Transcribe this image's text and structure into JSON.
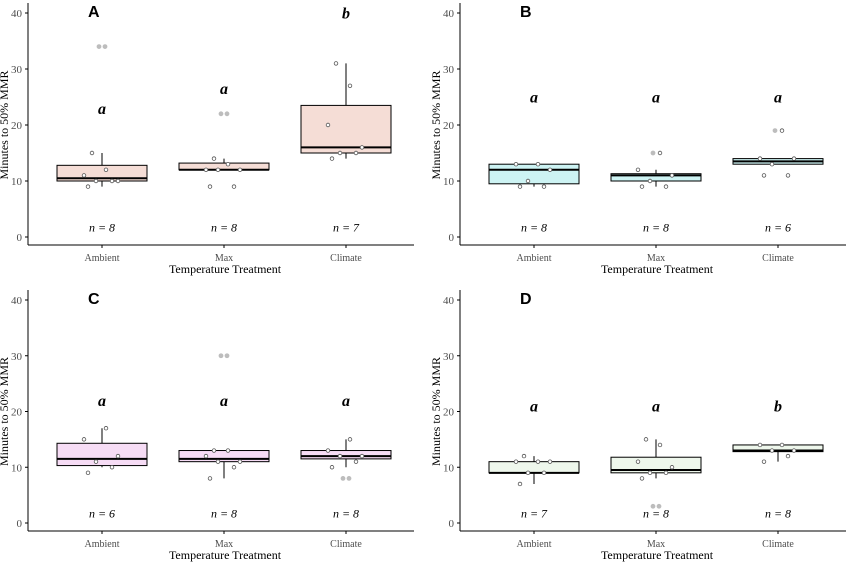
{
  "chart_data": [
    {
      "type": "box",
      "panel_label": "A",
      "xlabel": "Temperature Treatment",
      "ylabel": "Minutes to 50% MMR",
      "ylim": [
        0,
        40
      ],
      "yticks": [
        0,
        10,
        20,
        30,
        40
      ],
      "categories": [
        "Ambient",
        "Max",
        "Climate"
      ],
      "fill_color": "#f5ddd6",
      "grid": false,
      "groups": [
        {
          "category": "Ambient",
          "q1": 10,
          "median": 10.5,
          "q3": 12.8,
          "whisker_low": 9,
          "whisker_high": 15,
          "points": [
            9,
            10,
            10,
            10,
            11,
            12,
            15
          ],
          "outliers": [
            34,
            34
          ],
          "letter": "a",
          "n": "n = 8"
        },
        {
          "category": "Max",
          "q1": 12,
          "median": 12,
          "q3": 13.2,
          "whisker_low": 12,
          "whisker_high": 14,
          "points": [
            9,
            9,
            12,
            12,
            12,
            13,
            14
          ],
          "outliers": [
            22,
            22
          ],
          "letter": "a",
          "n": "n = 8"
        },
        {
          "category": "Climate",
          "q1": 15,
          "median": 16,
          "q3": 23.5,
          "whisker_low": 14,
          "whisker_high": 31,
          "points": [
            14,
            15,
            15,
            16,
            20,
            27,
            31
          ],
          "outliers": [],
          "letter": "b",
          "n": "n = 7"
        }
      ]
    },
    {
      "type": "box",
      "panel_label": "B",
      "xlabel": "Temperature Treatment",
      "ylabel": "Minutes to 50% MMR",
      "ylim": [
        0,
        40
      ],
      "yticks": [
        0,
        10,
        20,
        30,
        40
      ],
      "categories": [
        "Ambient",
        "Max",
        "Climate"
      ],
      "fill_color": "#cdf3f3",
      "grid": false,
      "groups": [
        {
          "category": "Ambient",
          "q1": 9.5,
          "median": 12,
          "q3": 13,
          "whisker_low": 9,
          "whisker_high": 13,
          "points": [
            9,
            9,
            10,
            12,
            13,
            13
          ],
          "outliers": [],
          "letter": "a",
          "n": "n = 8"
        },
        {
          "category": "Max",
          "q1": 10,
          "median": 11,
          "q3": 11.3,
          "whisker_low": 9,
          "whisker_high": 12,
          "points": [
            9,
            9,
            10,
            11,
            12,
            15
          ],
          "outliers": [
            15
          ],
          "letter": "a",
          "n": "n = 8"
        },
        {
          "category": "Climate",
          "q1": 13,
          "median": 13.5,
          "q3": 14,
          "whisker_low": 13,
          "whisker_high": 14,
          "points": [
            11,
            11,
            13,
            14,
            14,
            19
          ],
          "outliers": [
            19
          ],
          "letter": "a",
          "n": "n = 6"
        }
      ]
    },
    {
      "type": "box",
      "panel_label": "C",
      "xlabel": "Temperature Treatment",
      "ylabel": "Minutes to 50% MMR",
      "ylim": [
        0,
        40
      ],
      "yticks": [
        0,
        10,
        20,
        30,
        40
      ],
      "categories": [
        "Ambient",
        "Max",
        "Climate"
      ],
      "fill_color": "#f6dcf5",
      "grid": false,
      "groups": [
        {
          "category": "Ambient",
          "q1": 10.3,
          "median": 11.5,
          "q3": 14.3,
          "whisker_low": 10,
          "whisker_high": 17,
          "points": [
            9,
            10,
            11,
            12,
            15,
            17
          ],
          "outliers": [],
          "letter": "a",
          "n": "n = 6"
        },
        {
          "category": "Max",
          "q1": 11,
          "median": 11.5,
          "q3": 13,
          "whisker_low": 8,
          "whisker_high": 13,
          "points": [
            8,
            10,
            11,
            11,
            12,
            13,
            13
          ],
          "outliers": [
            30,
            30
          ],
          "letter": "a",
          "n": "n = 8"
        },
        {
          "category": "Climate",
          "q1": 11.5,
          "median": 12,
          "q3": 13,
          "whisker_low": 10,
          "whisker_high": 15,
          "points": [
            10,
            11,
            12,
            12,
            13,
            15
          ],
          "outliers": [
            8,
            8
          ],
          "letter": "a",
          "n": "n = 8"
        }
      ]
    },
    {
      "type": "box",
      "panel_label": "D",
      "xlabel": "Temperature Treatment",
      "ylabel": "Minutes to 50% MMR",
      "ylim": [
        0,
        40
      ],
      "yticks": [
        0,
        10,
        20,
        30,
        40
      ],
      "categories": [
        "Ambient",
        "Max",
        "Climate"
      ],
      "fill_color": "#eef7ec",
      "grid": false,
      "groups": [
        {
          "category": "Ambient",
          "q1": 9,
          "median": 9,
          "q3": 11,
          "whisker_low": 7,
          "whisker_high": 12,
          "points": [
            7,
            9,
            9,
            11,
            11,
            11,
            12
          ],
          "outliers": [],
          "letter": "a",
          "n": "n = 7"
        },
        {
          "category": "Max",
          "q1": 9,
          "median": 9.5,
          "q3": 11.8,
          "whisker_low": 8,
          "whisker_high": 15,
          "points": [
            8,
            9,
            9,
            10,
            11,
            14,
            15
          ],
          "outliers": [
            3,
            3
          ],
          "letter": "a",
          "n": "n = 8"
        },
        {
          "category": "Climate",
          "q1": 12.8,
          "median": 13,
          "q3": 14,
          "whisker_low": 11,
          "whisker_high": 14,
          "points": [
            11,
            12,
            13,
            13,
            14,
            14
          ],
          "outliers": [],
          "letter": "b",
          "n": "n = 8"
        }
      ]
    }
  ]
}
